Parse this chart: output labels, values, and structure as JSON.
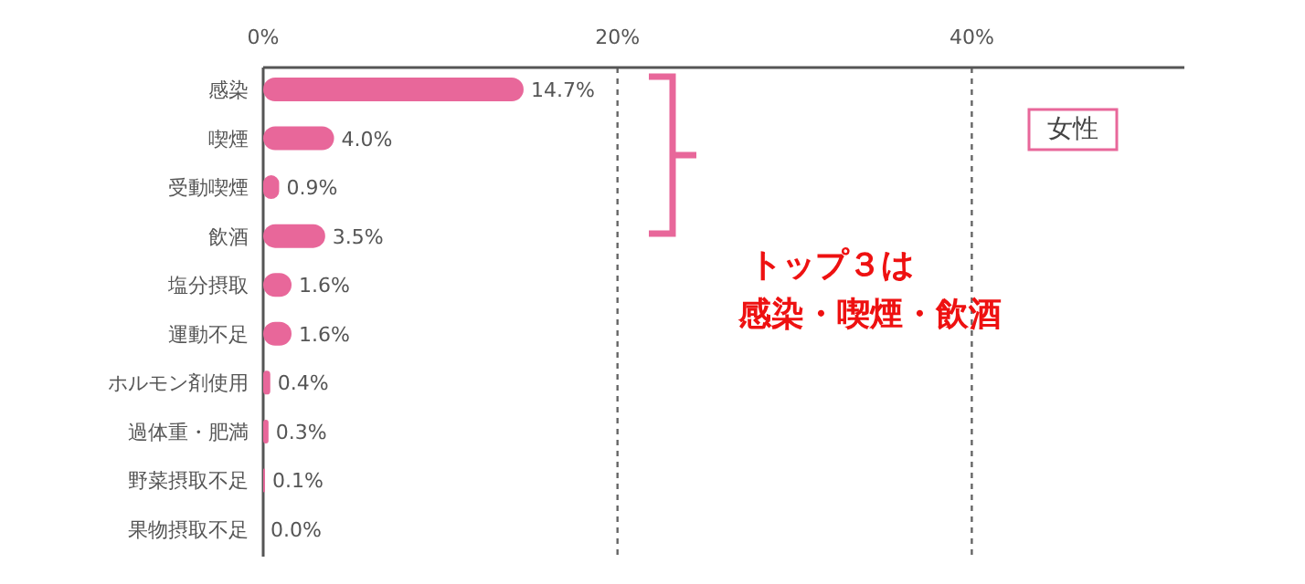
{
  "chart_data": {
    "type": "bar",
    "orientation": "horizontal",
    "categories": [
      "感染",
      "喫煙",
      "受動喫煙",
      "飲酒",
      "塩分摂取",
      "運動不足",
      "ホルモン剤使用",
      "過体重・肥満",
      "野菜摂取不足",
      "果物摂取不足"
    ],
    "values": [
      14.7,
      4.0,
      0.9,
      3.5,
      1.6,
      1.6,
      0.4,
      0.3,
      0.1,
      0.0
    ],
    "value_labels": [
      "14.7%",
      "4.0%",
      "0.9%",
      "3.5%",
      "1.6%",
      "1.6%",
      "0.4%",
      "0.3%",
      "0.1%",
      "0.0%"
    ],
    "color": "#e8679a",
    "xlim": [
      0,
      52
    ],
    "xticks": [
      {
        "value": 0,
        "label": "0%"
      },
      {
        "value": 20,
        "label": "20%"
      },
      {
        "value": 40,
        "label": "40%"
      }
    ],
    "grid": "x",
    "annotations": [
      "女性",
      "トップ３は",
      "感染・喫煙・飲酒"
    ]
  }
}
